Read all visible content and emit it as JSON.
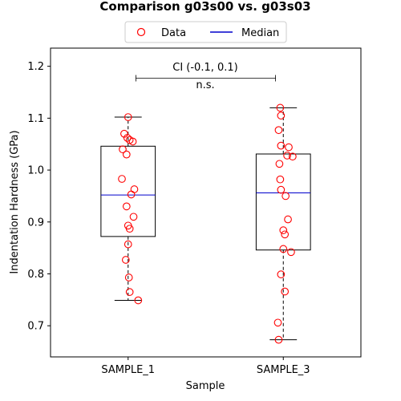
{
  "chart_data": {
    "type": "box",
    "title": "Comparison g03s00 vs. g03s03",
    "xlabel": "Sample",
    "ylabel": "Indentation Hardness (GPa)",
    "ylim": [
      0.64,
      1.235
    ],
    "yticks": [
      0.7,
      0.8,
      0.9,
      1.0,
      1.1,
      1.2
    ],
    "ytick_labels": [
      "0.7",
      "0.8",
      "0.9",
      "1.0",
      "1.1",
      "1.2"
    ],
    "categories": [
      "SAMPLE_1",
      "SAMPLE_3"
    ],
    "grid": false,
    "legend": {
      "placement": "top-center",
      "entries": [
        {
          "label": "Data",
          "marker": "circle",
          "color": "#ff0000"
        },
        {
          "label": "Median",
          "marker": "line",
          "color": "#0000cc"
        }
      ]
    },
    "boxes": [
      {
        "name": "SAMPLE_1",
        "q1": 0.872,
        "median": 0.952,
        "q3": 1.046,
        "whisker_low": 0.749,
        "whisker_high": 1.102
      },
      {
        "name": "SAMPLE_3",
        "q1": 0.846,
        "median": 0.956,
        "q3": 1.031,
        "whisker_low": 0.673,
        "whisker_high": 1.12
      }
    ],
    "points": [
      {
        "category": "SAMPLE_1",
        "values": [
          1.102,
          1.07,
          1.062,
          1.058,
          1.055,
          1.04,
          1.03,
          0.983,
          0.963,
          0.953,
          0.93,
          0.91,
          0.893,
          0.887,
          0.857,
          0.827,
          0.793,
          0.765,
          0.749
        ],
        "jitter": [
          0.0,
          -0.05,
          -0.01,
          0.02,
          0.06,
          -0.07,
          -0.02,
          -0.08,
          0.08,
          0.04,
          -0.02,
          0.07,
          0.0,
          0.02,
          0.0,
          -0.03,
          0.01,
          0.02,
          0.13
        ]
      },
      {
        "category": "SAMPLE_3",
        "values": [
          1.12,
          1.105,
          1.077,
          1.047,
          1.044,
          1.028,
          1.026,
          1.012,
          0.982,
          0.962,
          0.95,
          0.905,
          0.884,
          0.876,
          0.848,
          0.842,
          0.799,
          0.766,
          0.706,
          0.673
        ],
        "jitter": [
          -0.04,
          -0.03,
          -0.06,
          -0.03,
          0.07,
          0.05,
          0.12,
          -0.05,
          -0.04,
          -0.03,
          0.03,
          0.06,
          0.0,
          0.02,
          0.0,
          0.1,
          -0.03,
          0.02,
          -0.07,
          -0.06
        ]
      }
    ],
    "annotations": {
      "ci_text": "CI (-0.1, 0.1)",
      "significance_text": "n.s.",
      "bracket_y": 1.177
    }
  }
}
